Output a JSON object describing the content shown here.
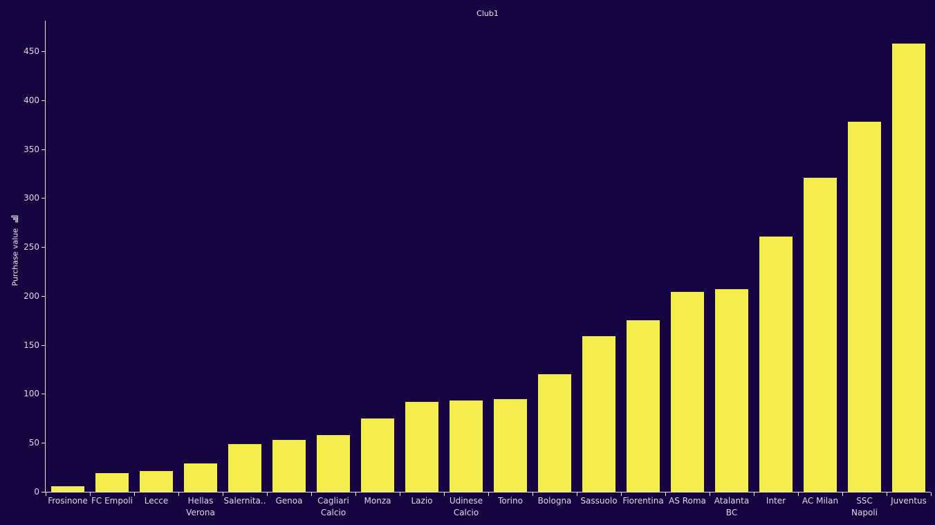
{
  "chart": {
    "title": "Club1",
    "y_axis_title": "Purchase value",
    "y_axis_sort_icon": "sort-descending-bars-icon"
  },
  "chart_data": {
    "type": "bar",
    "title": "Club1",
    "xlabel": "",
    "ylabel": "Purchase value",
    "ylim": [
      0,
      480
    ],
    "yticks": [
      0,
      50,
      100,
      150,
      200,
      250,
      300,
      350,
      400,
      450
    ],
    "grid": false,
    "legend": null,
    "bar_color": "#f5ec4e",
    "background_color": "#150440",
    "categories": [
      "Frosinone",
      "FC Empoli",
      "Lecce",
      "Hellas Verona",
      "Salernita..",
      "Genoa",
      "Cagliari Calcio",
      "Monza",
      "Lazio",
      "Udinese Calcio",
      "Torino",
      "Bologna",
      "Sassuolo",
      "Fiorentina",
      "AS Roma",
      "Atalanta BC",
      "Inter",
      "AC Milan",
      "SSC Napoli",
      "Juventus"
    ],
    "values": [
      6,
      19,
      21,
      29,
      49,
      53,
      58,
      75,
      92,
      93,
      95,
      120,
      159,
      175,
      204,
      207,
      261,
      321,
      378,
      458
    ]
  }
}
